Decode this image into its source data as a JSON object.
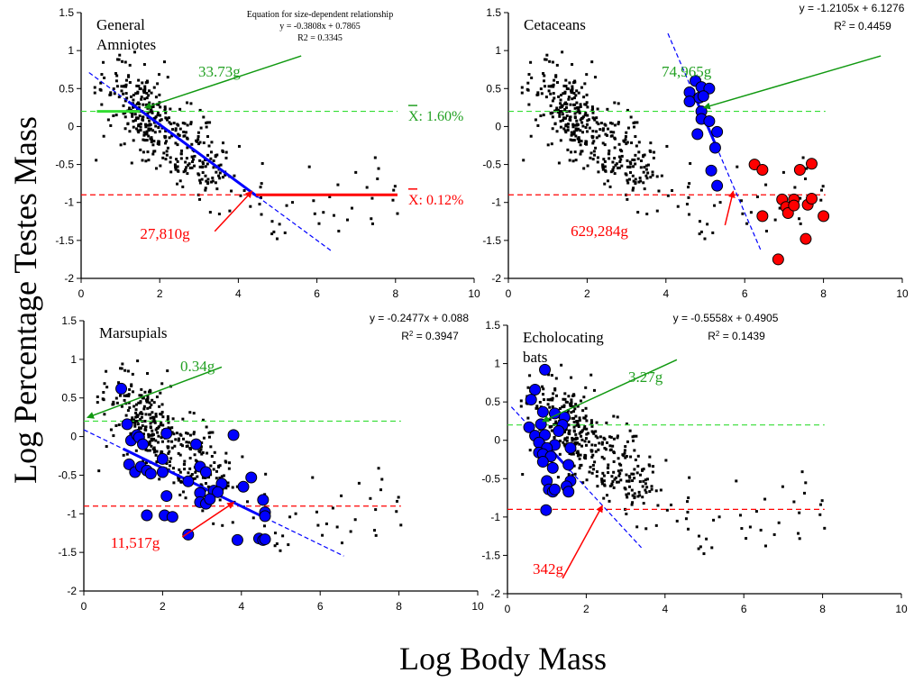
{
  "figure": {
    "ylabel": "Log Percentage Testes Mass",
    "xlabel": "Log Body Mass"
  },
  "colors": {
    "blue": "#0000ff",
    "red": "#ff0000",
    "green_dash": "#33dd33",
    "green_text": "#22a022",
    "dark_green": "#119911",
    "dot": "#000000"
  },
  "chart_data": [
    {
      "id": "general",
      "type": "scatter",
      "title": "General Amniotes",
      "title_lines": [
        "General",
        "Amniotes"
      ],
      "equation_header": "Equation for  size-dependent relationship",
      "equation": "y = -0.3808x + 0.7865",
      "r2": "R2 = 0.3345",
      "xlim": [
        0,
        10
      ],
      "ylim": [
        -2,
        1.5
      ],
      "xticks": [
        "0",
        "2",
        "4",
        "6",
        "8",
        "10"
      ],
      "yticks": [
        "1.5",
        "1",
        "0.5",
        "0",
        "-0.5",
        "-1",
        "-1.5",
        "-2"
      ],
      "mean_high": {
        "y": 0.2,
        "label": "X: 1.60%"
      },
      "mean_low": {
        "y": -0.9,
        "label": "X: 0.12%"
      },
      "fit": {
        "slope": -0.3808,
        "intercept": 0.7865,
        "x_range": [
          0.2,
          6.4
        ],
        "solid_range": [
          1.2,
          4.5
        ]
      },
      "annotation_high": {
        "label": "33.73g",
        "x": 1.53,
        "y": 0.2
      },
      "annotation_low": {
        "label": "27,810g",
        "x": 4.44,
        "y": -0.9
      },
      "highlight_points": []
    },
    {
      "id": "cetaceans",
      "type": "scatter",
      "title": "Cetaceans",
      "title_lines": [
        "Cetaceans"
      ],
      "equation": "y = -1.2105x + 6.1276",
      "r2_prefix": "R",
      "r2_value": " = 0.4459",
      "xlim": [
        0,
        10
      ],
      "ylim": [
        -2,
        1.5
      ],
      "xticks": [
        "0",
        "2",
        "4",
        "6",
        "8",
        "10"
      ],
      "yticks": [
        "1.5",
        "1",
        "0.5",
        "0",
        "-0.5",
        "-1",
        "-1.5",
        "-2"
      ],
      "mean_high": {
        "y": 0.2
      },
      "mean_low": {
        "y": -0.9
      },
      "fit": {
        "slope": -1.2105,
        "intercept": 6.1276,
        "x_range": [
          4.05,
          6.4
        ],
        "solid_range": [
          4.75,
          5.25
        ]
      },
      "annotation_high": {
        "label": "74,965g",
        "x": 4.87,
        "y": 0.2
      },
      "annotation_low": {
        "label": "629,284g",
        "x": 5.8,
        "y": -0.9
      },
      "highlight_points": [
        {
          "x": 4.75,
          "y": 0.6,
          "c": "blue"
        },
        {
          "x": 4.6,
          "y": 0.45,
          "c": "blue"
        },
        {
          "x": 4.9,
          "y": 0.52,
          "c": "blue"
        },
        {
          "x": 5.1,
          "y": 0.5,
          "c": "blue"
        },
        {
          "x": 4.6,
          "y": 0.33,
          "c": "blue"
        },
        {
          "x": 4.85,
          "y": 0.38,
          "c": "blue"
        },
        {
          "x": 4.95,
          "y": 0.4,
          "c": "blue"
        },
        {
          "x": 4.9,
          "y": 0.2,
          "c": "blue"
        },
        {
          "x": 4.9,
          "y": 0.1,
          "c": "blue"
        },
        {
          "x": 5.1,
          "y": 0.07,
          "c": "blue"
        },
        {
          "x": 5.3,
          "y": -0.07,
          "c": "blue"
        },
        {
          "x": 4.8,
          "y": -0.1,
          "c": "blue"
        },
        {
          "x": 5.25,
          "y": -0.28,
          "c": "blue"
        },
        {
          "x": 5.15,
          "y": -0.58,
          "c": "blue"
        },
        {
          "x": 5.3,
          "y": -0.78,
          "c": "blue"
        },
        {
          "x": 6.25,
          "y": -0.5,
          "c": "red"
        },
        {
          "x": 6.45,
          "y": -0.57,
          "c": "red"
        },
        {
          "x": 7.4,
          "y": -0.57,
          "c": "red"
        },
        {
          "x": 7.7,
          "y": -0.49,
          "c": "red"
        },
        {
          "x": 6.95,
          "y": -0.96,
          "c": "red"
        },
        {
          "x": 7.05,
          "y": -1.06,
          "c": "red"
        },
        {
          "x": 7.1,
          "y": -1.14,
          "c": "red"
        },
        {
          "x": 7.25,
          "y": -0.96,
          "c": "red"
        },
        {
          "x": 7.25,
          "y": -1.04,
          "c": "red"
        },
        {
          "x": 7.6,
          "y": -1.03,
          "c": "red"
        },
        {
          "x": 7.7,
          "y": -0.95,
          "c": "red"
        },
        {
          "x": 6.45,
          "y": -1.18,
          "c": "red"
        },
        {
          "x": 8.0,
          "y": -1.18,
          "c": "red"
        },
        {
          "x": 7.55,
          "y": -1.48,
          "c": "red"
        },
        {
          "x": 6.85,
          "y": -1.75,
          "c": "red"
        }
      ]
    },
    {
      "id": "marsupials",
      "type": "scatter",
      "title": "Marsupials",
      "title_lines": [
        "Marsupials"
      ],
      "equation": "y = -0.2477x + 0.088",
      "r2_prefix": "R",
      "r2_value": " = 0.3947",
      "xlim": [
        0,
        10
      ],
      "ylim": [
        -2,
        1.5
      ],
      "xticks": [
        "0",
        "2",
        "4",
        "6",
        "8",
        "10"
      ],
      "yticks": [
        "1.5",
        "1",
        "0.5",
        "0",
        "-0.5",
        "-1",
        "-1.5",
        "-2"
      ],
      "mean_high": {
        "y": 0.2
      },
      "mean_low": {
        "y": -0.9
      },
      "fit": {
        "slope": -0.2477,
        "intercept": 0.088,
        "x_range": [
          0,
          6.6
        ],
        "solid_range": [
          1.0,
          4.6
        ]
      },
      "annotation_high": {
        "label": "0.34g",
        "x": 0.0,
        "y": 0.2
      },
      "annotation_low": {
        "label": "11,517g",
        "x": 3.9,
        "y": -0.9
      },
      "highlight_points": [
        {
          "x": 0.95,
          "y": 0.62,
          "c": "blue"
        },
        {
          "x": 1.1,
          "y": 0.16,
          "c": "blue"
        },
        {
          "x": 1.2,
          "y": -0.05,
          "c": "blue"
        },
        {
          "x": 1.35,
          "y": 0.02,
          "c": "blue"
        },
        {
          "x": 1.4,
          "y": -0.01,
          "c": "blue"
        },
        {
          "x": 1.5,
          "y": -0.1,
          "c": "blue"
        },
        {
          "x": 2.1,
          "y": 0.04,
          "c": "blue"
        },
        {
          "x": 3.8,
          "y": 0.02,
          "c": "blue"
        },
        {
          "x": 2.85,
          "y": -0.1,
          "c": "blue"
        },
        {
          "x": 1.15,
          "y": -0.36,
          "c": "blue"
        },
        {
          "x": 1.3,
          "y": -0.46,
          "c": "blue"
        },
        {
          "x": 1.45,
          "y": -0.39,
          "c": "blue"
        },
        {
          "x": 1.6,
          "y": -0.44,
          "c": "blue"
        },
        {
          "x": 1.7,
          "y": -0.48,
          "c": "blue"
        },
        {
          "x": 2.0,
          "y": -0.29,
          "c": "blue"
        },
        {
          "x": 2.0,
          "y": -0.46,
          "c": "blue"
        },
        {
          "x": 2.95,
          "y": -0.39,
          "c": "blue"
        },
        {
          "x": 3.1,
          "y": -0.46,
          "c": "blue"
        },
        {
          "x": 2.65,
          "y": -0.58,
          "c": "blue"
        },
        {
          "x": 3.5,
          "y": -0.61,
          "c": "blue"
        },
        {
          "x": 4.05,
          "y": -0.65,
          "c": "blue"
        },
        {
          "x": 4.25,
          "y": -0.53,
          "c": "blue"
        },
        {
          "x": 3.3,
          "y": -0.7,
          "c": "blue"
        },
        {
          "x": 3.4,
          "y": -0.72,
          "c": "blue"
        },
        {
          "x": 2.95,
          "y": -0.73,
          "c": "blue"
        },
        {
          "x": 2.1,
          "y": -0.77,
          "c": "blue"
        },
        {
          "x": 2.95,
          "y": -0.85,
          "c": "blue"
        },
        {
          "x": 3.1,
          "y": -0.87,
          "c": "blue"
        },
        {
          "x": 3.2,
          "y": -0.81,
          "c": "blue"
        },
        {
          "x": 4.55,
          "y": -0.82,
          "c": "blue"
        },
        {
          "x": 4.6,
          "y": -0.98,
          "c": "blue"
        },
        {
          "x": 4.6,
          "y": -1.03,
          "c": "blue"
        },
        {
          "x": 1.6,
          "y": -1.02,
          "c": "blue"
        },
        {
          "x": 2.05,
          "y": -1.02,
          "c": "blue"
        },
        {
          "x": 2.25,
          "y": -1.04,
          "c": "blue"
        },
        {
          "x": 2.65,
          "y": -1.27,
          "c": "blue"
        },
        {
          "x": 3.9,
          "y": -1.34,
          "c": "blue"
        },
        {
          "x": 4.45,
          "y": -1.32,
          "c": "blue"
        },
        {
          "x": 4.55,
          "y": -1.34,
          "c": "blue"
        },
        {
          "x": 4.6,
          "y": -1.33,
          "c": "blue"
        }
      ]
    },
    {
      "id": "bats",
      "type": "scatter",
      "title": "Echolocating bats",
      "title_lines": [
        "Echolocating",
        "bats"
      ],
      "equation": "y = -0.5558x + 0.4905",
      "r2_prefix": "R",
      "r2_value": " = 0.1439",
      "xlim": [
        0,
        10
      ],
      "ylim": [
        -2,
        1.5
      ],
      "xticks": [
        "0",
        "2",
        "4",
        "6",
        "8",
        "10"
      ],
      "yticks": [
        "1.5",
        "1",
        "0.5",
        "0",
        "-0.5",
        "-1",
        "-1.5",
        "-2"
      ],
      "mean_high": {
        "y": 0.2
      },
      "mean_low": {
        "y": -0.9
      },
      "fit": {
        "slope": -0.5558,
        "intercept": 0.4905,
        "x_range": [
          0.1,
          3.4
        ],
        "solid_range": [
          0.6,
          1.6
        ]
      },
      "annotation_high": {
        "label": "3.27g",
        "x": 0.8,
        "y": 0.2
      },
      "annotation_low": {
        "label": "342g",
        "x": 2.5,
        "y": -0.9
      },
      "highlight_points": [
        {
          "x": 0.95,
          "y": 0.92,
          "c": "blue"
        },
        {
          "x": 0.7,
          "y": 0.66,
          "c": "blue"
        },
        {
          "x": 0.6,
          "y": 0.53,
          "c": "blue"
        },
        {
          "x": 0.9,
          "y": 0.37,
          "c": "blue"
        },
        {
          "x": 1.2,
          "y": 0.35,
          "c": "blue"
        },
        {
          "x": 1.45,
          "y": 0.3,
          "c": "blue"
        },
        {
          "x": 1.4,
          "y": 0.2,
          "c": "blue"
        },
        {
          "x": 0.85,
          "y": 0.21,
          "c": "blue"
        },
        {
          "x": 0.55,
          "y": 0.17,
          "c": "blue"
        },
        {
          "x": 1.3,
          "y": 0.12,
          "c": "blue"
        },
        {
          "x": 0.7,
          "y": 0.06,
          "c": "blue"
        },
        {
          "x": 0.95,
          "y": 0.07,
          "c": "blue"
        },
        {
          "x": 0.8,
          "y": -0.03,
          "c": "blue"
        },
        {
          "x": 1.2,
          "y": -0.06,
          "c": "blue"
        },
        {
          "x": 1.0,
          "y": -0.1,
          "c": "blue"
        },
        {
          "x": 1.6,
          "y": -0.1,
          "c": "blue"
        },
        {
          "x": 0.8,
          "y": -0.16,
          "c": "blue"
        },
        {
          "x": 0.9,
          "y": -0.18,
          "c": "blue"
        },
        {
          "x": 1.1,
          "y": -0.21,
          "c": "blue"
        },
        {
          "x": 0.9,
          "y": -0.28,
          "c": "blue"
        },
        {
          "x": 1.55,
          "y": -0.32,
          "c": "blue"
        },
        {
          "x": 1.15,
          "y": -0.36,
          "c": "blue"
        },
        {
          "x": 1.0,
          "y": -0.53,
          "c": "blue"
        },
        {
          "x": 1.6,
          "y": -0.53,
          "c": "blue"
        },
        {
          "x": 1.5,
          "y": -0.6,
          "c": "blue"
        },
        {
          "x": 1.05,
          "y": -0.64,
          "c": "blue"
        },
        {
          "x": 1.15,
          "y": -0.67,
          "c": "blue"
        },
        {
          "x": 1.2,
          "y": -0.64,
          "c": "blue"
        },
        {
          "x": 1.55,
          "y": -0.67,
          "c": "blue"
        },
        {
          "x": 0.98,
          "y": -0.91,
          "c": "blue"
        }
      ]
    }
  ],
  "background_cloud_seed": 7
}
